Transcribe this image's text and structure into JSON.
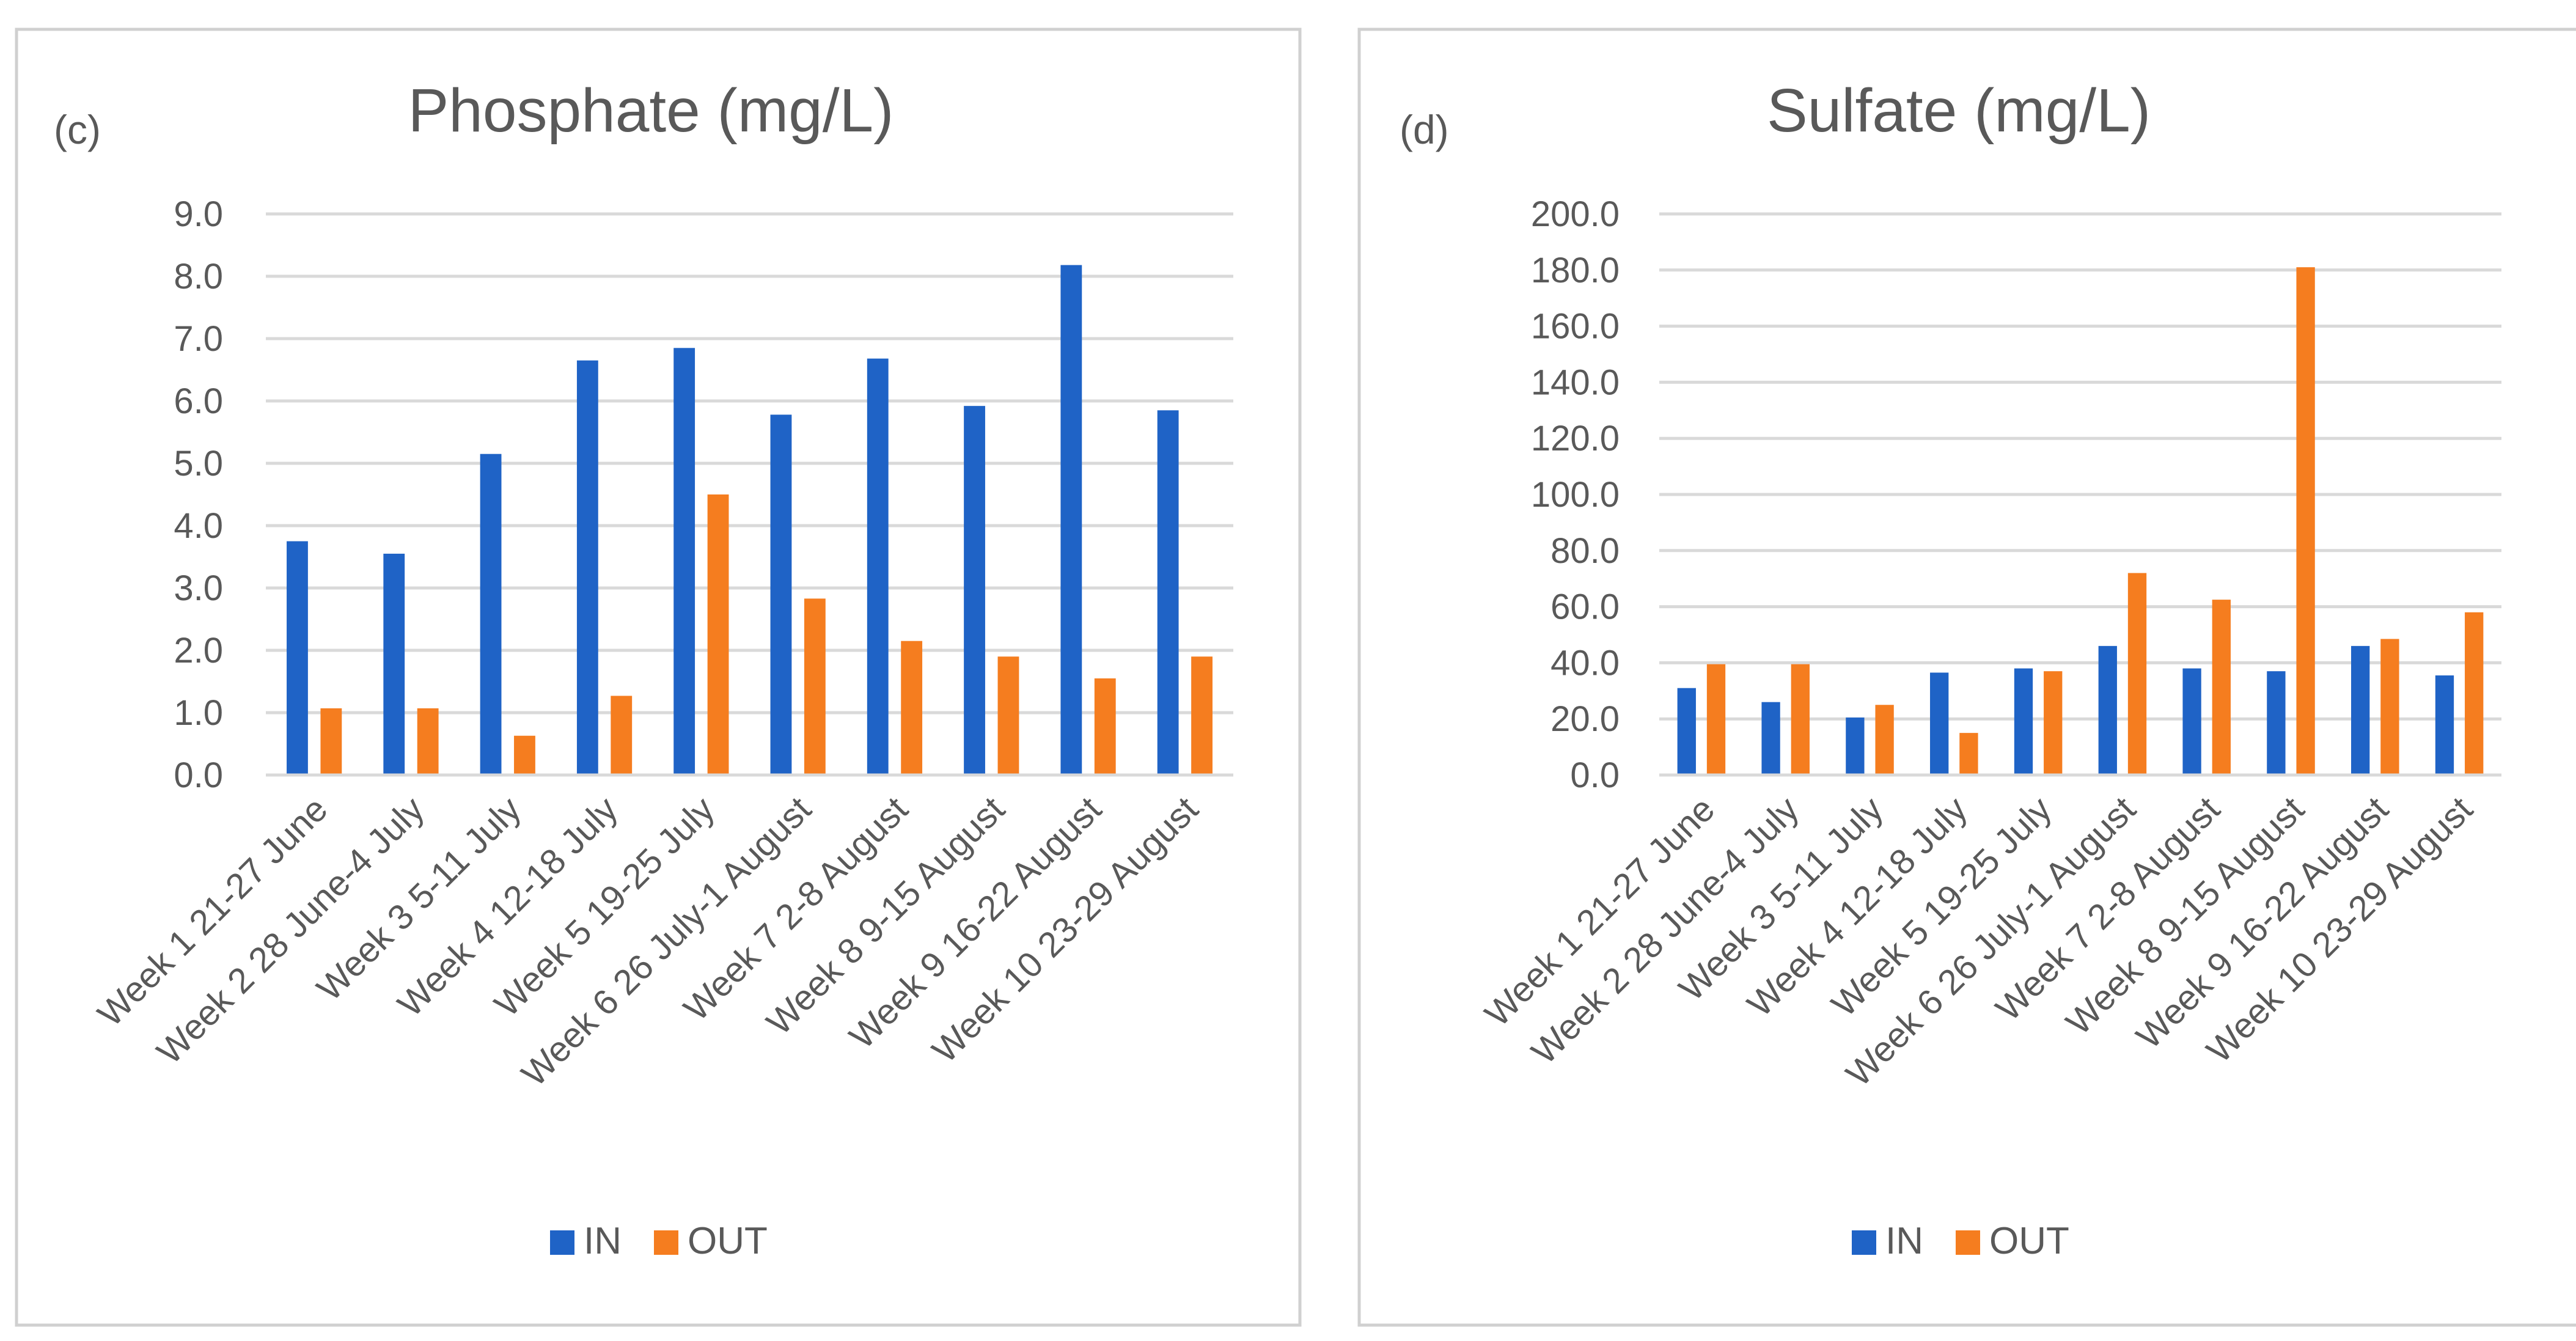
{
  "chart_data": [
    {
      "type": "bar",
      "panel_label": "(c)",
      "title": "Phosphate (mg/L)",
      "xlabel": "",
      "ylabel": "",
      "ylim": [
        0,
        9
      ],
      "ytick_step": 1,
      "ytick_labels": [
        "0.0",
        "1.0",
        "2.0",
        "3.0",
        "4.0",
        "5.0",
        "6.0",
        "7.0",
        "8.0",
        "9.0"
      ],
      "grid": true,
      "legend_position": "bottom",
      "categories": [
        "Week 1 21-27 June",
        "Week 2 28 June-4 July",
        "Week 3 5-11 July",
        "Week 4 12-18 July",
        "Week 5 19-25 July",
        "Week 6 26 July-1 August",
        "Week 7 2-8 August",
        "Week 8 9-15 August",
        "Week 9 16-22 August",
        "Week 10 23-29 August"
      ],
      "series": [
        {
          "name": "IN",
          "color": "#1f63c6",
          "values": [
            3.75,
            3.55,
            5.15,
            6.65,
            6.85,
            5.78,
            6.68,
            5.92,
            8.18,
            5.85
          ]
        },
        {
          "name": "OUT",
          "color": "#f57d1f",
          "values": [
            1.07,
            1.07,
            0.63,
            1.27,
            4.5,
            2.83,
            2.15,
            1.9,
            1.55,
            1.9
          ]
        }
      ]
    },
    {
      "type": "bar",
      "panel_label": "(d)",
      "title": "Sulfate (mg/L)",
      "xlabel": "",
      "ylabel": "",
      "ylim": [
        0,
        200
      ],
      "ytick_step": 20,
      "ytick_labels": [
        "0.0",
        "20.0",
        "40.0",
        "60.0",
        "80.0",
        "100.0",
        "120.0",
        "140.0",
        "160.0",
        "180.0",
        "200.0"
      ],
      "grid": true,
      "legend_position": "bottom",
      "categories": [
        "Week 1 21-27 June",
        "Week 2 28 June-4 July",
        "Week 3 5-11 July",
        "Week 4 12-18 July",
        "Week 5 19-25 July",
        "Week 6 26 July-1 August",
        "Week 7 2-8 August",
        "Week 8 9-15 August",
        "Week 9 16-22 August",
        "Week 10 23-29 August"
      ],
      "series": [
        {
          "name": "IN",
          "color": "#1f63c6",
          "values": [
            31,
            26,
            20.5,
            36.5,
            38,
            46,
            38,
            37,
            46,
            35.5
          ]
        },
        {
          "name": "OUT",
          "color": "#f57d1f",
          "values": [
            39.5,
            39.5,
            25,
            15,
            37,
            72,
            62.5,
            181,
            48.5,
            58
          ]
        }
      ]
    }
  ]
}
